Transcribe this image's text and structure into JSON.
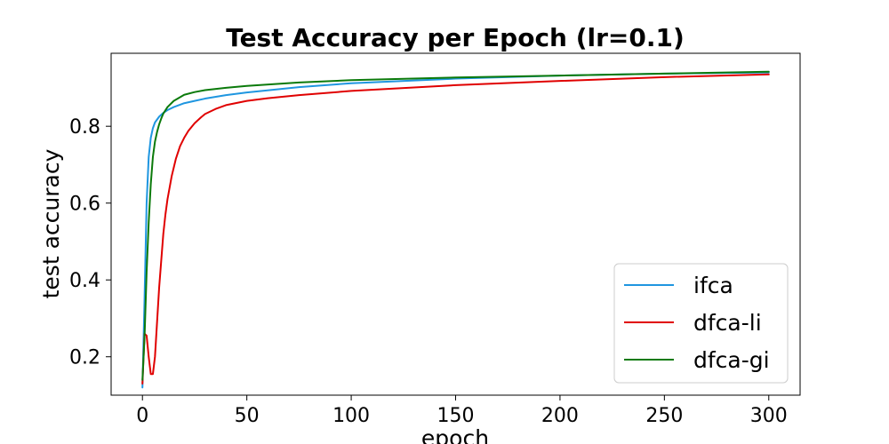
{
  "chart_data": {
    "type": "line",
    "title": "Test Accuracy per Epoch (lr=0.1)",
    "xlabel": "epoch",
    "ylabel": "test accuracy",
    "xlim": [
      -15,
      315
    ],
    "ylim": [
      0.1,
      0.99
    ],
    "xticks": [
      0,
      50,
      100,
      150,
      200,
      250,
      300
    ],
    "yticks": [
      0.2,
      0.4,
      0.6,
      0.8
    ],
    "xtick_labels": [
      "0",
      "50",
      "100",
      "150",
      "200",
      "250",
      "300"
    ],
    "ytick_labels": [
      "0.2",
      "0.4",
      "0.6",
      "0.8"
    ],
    "grid": false,
    "legend_position": "lower-right",
    "series": [
      {
        "name": "ifca",
        "color": "#1f96e0",
        "x": [
          0,
          1,
          2,
          3,
          4,
          5,
          6,
          8,
          10,
          12,
          15,
          20,
          25,
          30,
          40,
          50,
          75,
          100,
          150,
          200,
          250,
          300
        ],
        "y": [
          0.12,
          0.35,
          0.6,
          0.72,
          0.77,
          0.795,
          0.81,
          0.825,
          0.835,
          0.842,
          0.85,
          0.86,
          0.866,
          0.872,
          0.881,
          0.888,
          0.902,
          0.912,
          0.924,
          0.932,
          0.937,
          0.94
        ]
      },
      {
        "name": "dfca-li",
        "color": "#e00000",
        "x": [
          0,
          1,
          2,
          3,
          4,
          5,
          6,
          7,
          8,
          9,
          10,
          11,
          12,
          14,
          16,
          18,
          20,
          22,
          25,
          28,
          30,
          35,
          40,
          50,
          60,
          75,
          100,
          150,
          200,
          250,
          300
        ],
        "y": [
          0.13,
          0.26,
          0.255,
          0.2,
          0.155,
          0.155,
          0.2,
          0.29,
          0.38,
          0.45,
          0.52,
          0.57,
          0.61,
          0.67,
          0.715,
          0.748,
          0.77,
          0.788,
          0.808,
          0.823,
          0.832,
          0.845,
          0.855,
          0.866,
          0.873,
          0.881,
          0.892,
          0.907,
          0.918,
          0.928,
          0.935
        ]
      },
      {
        "name": "dfca-gi",
        "color": "#0b7a0b",
        "x": [
          0,
          1,
          2,
          3,
          4,
          5,
          6,
          7,
          8,
          9,
          10,
          12,
          15,
          20,
          25,
          30,
          40,
          50,
          75,
          100,
          150,
          200,
          250,
          300
        ],
        "y": [
          0.14,
          0.25,
          0.42,
          0.55,
          0.65,
          0.72,
          0.76,
          0.785,
          0.805,
          0.82,
          0.833,
          0.85,
          0.866,
          0.882,
          0.889,
          0.894,
          0.9,
          0.905,
          0.914,
          0.92,
          0.927,
          0.932,
          0.937,
          0.942
        ]
      }
    ]
  }
}
